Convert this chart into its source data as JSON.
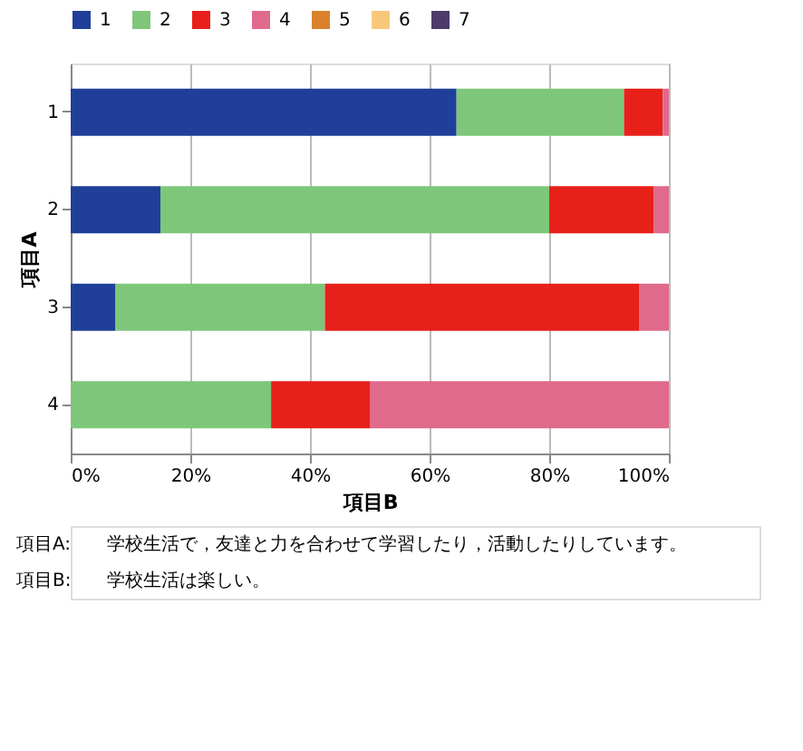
{
  "chart_data": {
    "type": "bar",
    "orientation": "horizontal",
    "stacked": true,
    "categories": [
      "1",
      "2",
      "3",
      "4"
    ],
    "xlabel": "項目B",
    "ylabel": "項目A",
    "xlim": [
      0,
      100
    ],
    "xticks": [
      {
        "value": 0,
        "label": "0%"
      },
      {
        "value": 20,
        "label": "20%"
      },
      {
        "value": 40,
        "label": "40%"
      },
      {
        "value": 60,
        "label": "60%"
      },
      {
        "value": 80,
        "label": "80%"
      },
      {
        "value": 100,
        "label": "100%"
      }
    ],
    "grid": "x",
    "legend": "top",
    "series": [
      {
        "name": "1",
        "color": "#1f3f99",
        "values": [
          64.5,
          15,
          7.5,
          0
        ]
      },
      {
        "name": "2",
        "color": "#7ec77a",
        "values": [
          28,
          65,
          35,
          33.5
        ]
      },
      {
        "name": "3",
        "color": "#e8201a",
        "values": [
          6.5,
          17.5,
          52.5,
          16.5
        ]
      },
      {
        "name": "4",
        "color": "#e06a8c",
        "values": [
          1,
          2.5,
          5,
          50
        ]
      },
      {
        "name": "5",
        "color": "#d9822b",
        "values": [
          0,
          0,
          0,
          0
        ]
      },
      {
        "name": "6",
        "color": "#f7c87a",
        "values": [
          0,
          0,
          0,
          0
        ]
      },
      {
        "name": "7",
        "color": "#4d3b6b",
        "values": [
          0,
          0,
          0,
          0
        ]
      }
    ],
    "annotations": [
      "項目A:",
      "学校生活で，友達と力を合わせて学習したり，活動したりしています。",
      "項目B:",
      "学校生活は楽しい。"
    ]
  }
}
